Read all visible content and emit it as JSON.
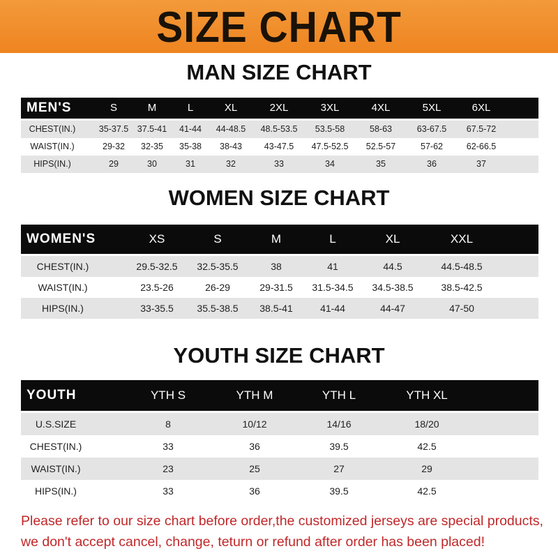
{
  "banner": {
    "title": "SIZE CHART"
  },
  "men": {
    "title": "MAN SIZE CHART",
    "header": [
      "MEN'S",
      "S",
      "M",
      "L",
      "XL",
      "2XL",
      "3XL",
      "4XL",
      "5XL",
      "6XL"
    ],
    "rows": [
      [
        "CHEST(IN.)",
        "35-37.5",
        "37.5-41",
        "41-44",
        "44-48.5",
        "48.5-53.5",
        "53.5-58",
        "58-63",
        "63-67.5",
        "67.5-72"
      ],
      [
        "WAIST(IN.)",
        "29-32",
        "32-35",
        "35-38",
        "38-43",
        "43-47.5",
        "47.5-52.5",
        "52.5-57",
        "57-62",
        "62-66.5"
      ],
      [
        "HIPS(IN.)",
        "29",
        "30",
        "31",
        "32",
        "33",
        "34",
        "35",
        "36",
        "37"
      ]
    ]
  },
  "women": {
    "title": "WOMEN SIZE CHART",
    "header": [
      "WOMEN'S",
      "XS",
      "S",
      "M",
      "L",
      "XL",
      "XXL"
    ],
    "rows": [
      [
        "CHEST(IN.)",
        "29.5-32.5",
        "32.5-35.5",
        "38",
        "41",
        "44.5",
        "44.5-48.5"
      ],
      [
        "WAIST(IN.)",
        "23.5-26",
        "26-29",
        "29-31.5",
        "31.5-34.5",
        "34.5-38.5",
        "38.5-42.5"
      ],
      [
        "HIPS(IN.)",
        "33-35.5",
        "35.5-38.5",
        "38.5-41",
        "41-44",
        "44-47",
        "47-50"
      ]
    ]
  },
  "youth": {
    "title": "YOUTH SIZE CHART",
    "header": [
      "YOUTH",
      "YTH S",
      "YTH M",
      "YTH L",
      "YTH XL"
    ],
    "rows": [
      [
        "U.S.SIZE",
        "8",
        "10/12",
        "14/16",
        "18/20"
      ],
      [
        "CHEST(IN.)",
        "33",
        "36",
        "39.5",
        "42.5"
      ],
      [
        "WAIST(IN.)",
        "23",
        "25",
        "27",
        "29"
      ],
      [
        "HIPS(IN.)",
        "33",
        "36",
        "39.5",
        "42.5"
      ]
    ]
  },
  "notice": {
    "line1": "Please refer to our size chart before order,the customized jerseys are special products,",
    "line2": "we don't accept cancel, change, teturn or refund after order has been placed!"
  }
}
